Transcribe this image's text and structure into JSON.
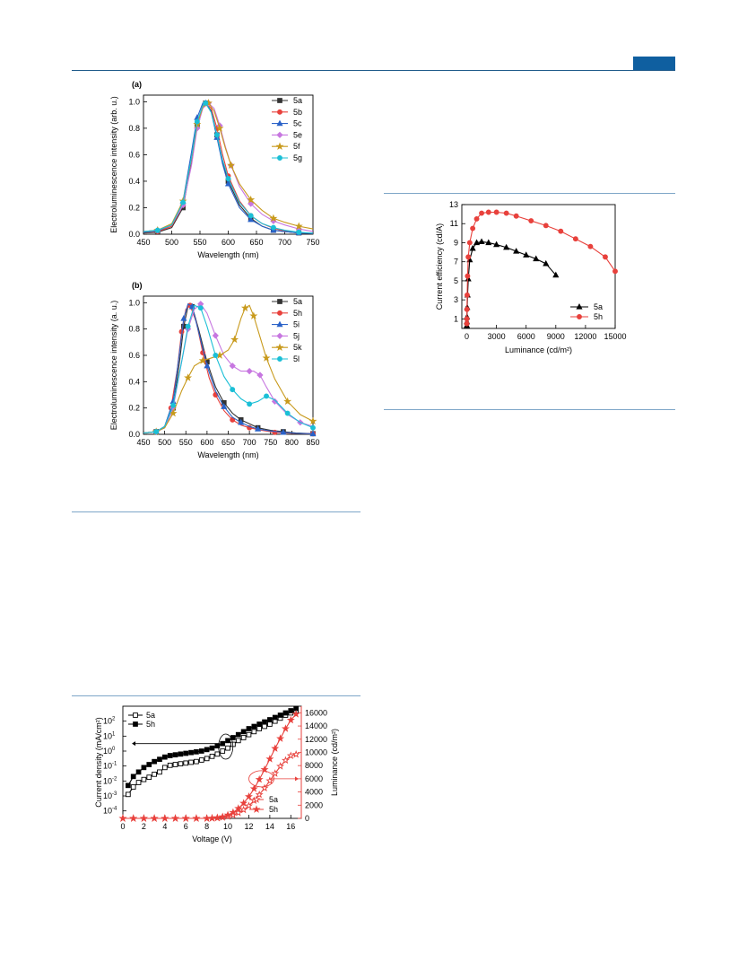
{
  "chart_data": [
    {
      "type": "line",
      "panel_label": "(a)",
      "xlabel": "Wavelength (nm)",
      "ylabel": "Electroluminescence intensity (arb. u.)",
      "xlim": [
        450,
        750
      ],
      "ylim": [
        0,
        1.05
      ],
      "xticks": [
        450,
        500,
        550,
        600,
        650,
        700,
        750
      ],
      "yticks": [
        0.0,
        0.2,
        0.4,
        0.6,
        0.8,
        1.0
      ],
      "legend_position": "top-right",
      "series": [
        {
          "name": "5a",
          "color": "#333333",
          "marker": "square",
          "x": [
            450,
            475,
            500,
            520,
            535,
            545,
            555,
            560,
            570,
            580,
            590,
            600,
            620,
            640,
            660,
            680,
            700,
            725,
            750
          ],
          "y": [
            0.01,
            0.015,
            0.05,
            0.2,
            0.55,
            0.82,
            0.97,
            0.99,
            0.93,
            0.75,
            0.55,
            0.4,
            0.22,
            0.12,
            0.06,
            0.03,
            0.02,
            0.01,
            0.005
          ]
        },
        {
          "name": "5b",
          "color": "#e8413c",
          "marker": "circle",
          "x": [
            450,
            475,
            500,
            520,
            535,
            545,
            555,
            560,
            570,
            580,
            590,
            600,
            620,
            640,
            660,
            680,
            700,
            725,
            750
          ],
          "y": [
            0.015,
            0.02,
            0.06,
            0.22,
            0.57,
            0.84,
            0.97,
            0.99,
            0.95,
            0.8,
            0.6,
            0.44,
            0.25,
            0.14,
            0.08,
            0.045,
            0.025,
            0.012,
            0.006
          ]
        },
        {
          "name": "5c",
          "color": "#2a62c8",
          "marker": "triangle",
          "x": [
            450,
            475,
            500,
            520,
            535,
            545,
            555,
            560,
            570,
            580,
            590,
            600,
            620,
            640,
            660,
            680,
            700,
            725,
            750
          ],
          "y": [
            0.015,
            0.025,
            0.07,
            0.25,
            0.62,
            0.88,
            0.99,
            0.99,
            0.92,
            0.73,
            0.53,
            0.38,
            0.2,
            0.11,
            0.06,
            0.03,
            0.02,
            0.01,
            0.005
          ]
        },
        {
          "name": "5e",
          "color": "#c777e0",
          "marker": "diamond",
          "x": [
            450,
            475,
            500,
            520,
            535,
            545,
            555,
            565,
            575,
            585,
            595,
            605,
            620,
            640,
            660,
            680,
            700,
            725,
            750
          ],
          "y": [
            0.02,
            0.03,
            0.07,
            0.22,
            0.52,
            0.8,
            0.95,
            0.99,
            0.95,
            0.82,
            0.66,
            0.52,
            0.36,
            0.23,
            0.15,
            0.1,
            0.07,
            0.04,
            0.02
          ]
        },
        {
          "name": "5f",
          "color": "#c89a1c",
          "marker": "star",
          "x": [
            450,
            475,
            500,
            520,
            535,
            545,
            555,
            565,
            575,
            585,
            595,
            605,
            620,
            640,
            660,
            680,
            700,
            725,
            750
          ],
          "y": [
            0.02,
            0.03,
            0.08,
            0.25,
            0.57,
            0.83,
            0.96,
            0.99,
            0.93,
            0.8,
            0.65,
            0.52,
            0.38,
            0.26,
            0.18,
            0.12,
            0.09,
            0.06,
            0.04
          ]
        },
        {
          "name": "5g",
          "color": "#1bbfd6",
          "marker": "circle",
          "x": [
            450,
            475,
            500,
            520,
            535,
            545,
            555,
            560,
            570,
            580,
            590,
            600,
            620,
            640,
            660,
            680,
            700,
            725,
            750
          ],
          "y": [
            0.02,
            0.03,
            0.07,
            0.24,
            0.58,
            0.85,
            0.97,
            0.99,
            0.92,
            0.75,
            0.56,
            0.42,
            0.24,
            0.14,
            0.08,
            0.05,
            0.03,
            0.015,
            0.008
          ]
        }
      ]
    },
    {
      "type": "line",
      "panel_label": "(b)",
      "xlabel": "Wavelength (nm)",
      "ylabel": "Electroluminescence intensity (a. u.)",
      "xlim": [
        450,
        850
      ],
      "ylim": [
        0,
        1.05
      ],
      "xticks": [
        450,
        500,
        550,
        600,
        650,
        700,
        750,
        800,
        850
      ],
      "yticks": [
        0.0,
        0.2,
        0.4,
        0.6,
        0.8,
        1.0
      ],
      "legend_position": "top-right",
      "series": [
        {
          "name": "5a",
          "color": "#333333",
          "marker": "square",
          "x": [
            450,
            480,
            500,
            520,
            535,
            545,
            555,
            565,
            580,
            600,
            620,
            640,
            660,
            680,
            700,
            720,
            750,
            780,
            810,
            850
          ],
          "y": [
            0.01,
            0.02,
            0.05,
            0.2,
            0.55,
            0.82,
            0.97,
            0.97,
            0.8,
            0.55,
            0.36,
            0.24,
            0.16,
            0.11,
            0.08,
            0.05,
            0.03,
            0.02,
            0.01,
            0.005
          ]
        },
        {
          "name": "5h",
          "color": "#e8413c",
          "marker": "circle",
          "x": [
            450,
            480,
            500,
            515,
            530,
            540,
            550,
            560,
            575,
            590,
            605,
            620,
            640,
            660,
            680,
            700,
            730,
            760,
            800,
            850
          ],
          "y": [
            0.01,
            0.02,
            0.06,
            0.2,
            0.5,
            0.78,
            0.95,
            0.98,
            0.85,
            0.62,
            0.43,
            0.3,
            0.18,
            0.11,
            0.07,
            0.05,
            0.03,
            0.015,
            0.008,
            0.004
          ]
        },
        {
          "name": "5i",
          "color": "#2a62c8",
          "marker": "triangle",
          "x": [
            450,
            480,
            500,
            520,
            535,
            545,
            555,
            565,
            580,
            600,
            620,
            640,
            660,
            680,
            700,
            720,
            750,
            780,
            810,
            850
          ],
          "y": [
            0.01,
            0.02,
            0.06,
            0.25,
            0.62,
            0.88,
            0.99,
            0.97,
            0.78,
            0.52,
            0.33,
            0.21,
            0.13,
            0.09,
            0.06,
            0.04,
            0.025,
            0.015,
            0.008,
            0.004
          ]
        },
        {
          "name": "5j",
          "color": "#c777e0",
          "marker": "diamond",
          "x": [
            450,
            480,
            500,
            520,
            540,
            555,
            570,
            585,
            600,
            620,
            640,
            660,
            680,
            700,
            710,
            725,
            740,
            760,
            790,
            820,
            850
          ],
          "y": [
            0.01,
            0.02,
            0.05,
            0.2,
            0.55,
            0.8,
            0.95,
            0.99,
            0.92,
            0.75,
            0.6,
            0.52,
            0.48,
            0.48,
            0.48,
            0.45,
            0.36,
            0.25,
            0.15,
            0.09,
            0.06
          ]
        },
        {
          "name": "5k",
          "color": "#c89a1c",
          "marker": "star",
          "x": [
            450,
            480,
            500,
            520,
            540,
            555,
            570,
            590,
            610,
            630,
            650,
            665,
            680,
            690,
            700,
            710,
            725,
            740,
            760,
            790,
            820,
            850
          ],
          "y": [
            0.01,
            0.02,
            0.05,
            0.16,
            0.33,
            0.43,
            0.52,
            0.56,
            0.58,
            0.6,
            0.64,
            0.72,
            0.88,
            0.96,
            0.98,
            0.9,
            0.74,
            0.58,
            0.42,
            0.25,
            0.15,
            0.1
          ]
        },
        {
          "name": "5l",
          "color": "#1bbfd6",
          "marker": "circle",
          "x": [
            450,
            480,
            500,
            520,
            540,
            555,
            570,
            585,
            600,
            620,
            640,
            660,
            680,
            700,
            720,
            740,
            760,
            790,
            820,
            850
          ],
          "y": [
            0.01,
            0.02,
            0.06,
            0.22,
            0.55,
            0.82,
            0.98,
            0.96,
            0.82,
            0.6,
            0.44,
            0.34,
            0.27,
            0.23,
            0.25,
            0.29,
            0.26,
            0.16,
            0.09,
            0.05
          ]
        }
      ]
    },
    {
      "type": "scatter",
      "xlabel": "Luminance (cd/m²)",
      "ylabel": "Current efficiency (cd/A)",
      "xlim": [
        -500,
        15000
      ],
      "ylim": [
        0,
        13
      ],
      "xticks": [
        0,
        3000,
        6000,
        9000,
        12000,
        15000
      ],
      "yticks": [
        1,
        3,
        5,
        7,
        9,
        11,
        13
      ],
      "legend_position": "bottom-right",
      "series": [
        {
          "name": "5a",
          "color": "#000000",
          "marker": "triangle",
          "x": [
            5,
            10,
            20,
            40,
            80,
            150,
            300,
            600,
            1000,
            1500,
            2200,
            3000,
            4000,
            5000,
            6000,
            7000,
            8000,
            9000
          ],
          "y": [
            0.3,
            0.7,
            1.2,
            2.2,
            3.5,
            5.2,
            7.2,
            8.4,
            9.0,
            9.1,
            9.0,
            8.8,
            8.5,
            8.1,
            7.7,
            7.3,
            6.8,
            5.6
          ]
        },
        {
          "name": "5h",
          "color": "#e8413c",
          "marker": "circle",
          "x": [
            5,
            10,
            20,
            40,
            80,
            150,
            300,
            600,
            1000,
            1500,
            2200,
            3000,
            4000,
            5000,
            6500,
            8000,
            9500,
            11000,
            12500,
            14000,
            15000
          ],
          "y": [
            0.5,
            1.0,
            2.0,
            3.5,
            5.5,
            7.5,
            9.0,
            10.5,
            11.5,
            12.1,
            12.2,
            12.2,
            12.1,
            11.8,
            11.3,
            10.8,
            10.2,
            9.4,
            8.6,
            7.5,
            6.0
          ]
        }
      ]
    },
    {
      "type": "scatter",
      "xlabel": "Voltage (V)",
      "ylabel": "Current density (mA/cm²)",
      "y2label": "Luminance (cd/m²)",
      "xlim": [
        0,
        17
      ],
      "ylim_log": [
        -4.5,
        3
      ],
      "y2lim": [
        0,
        17000
      ],
      "xticks": [
        0,
        2,
        4,
        6,
        8,
        10,
        12,
        14,
        16
      ],
      "yticks_exp": [
        -4,
        -3,
        -2,
        -1,
        0,
        1,
        2
      ],
      "y2ticks": [
        0,
        2000,
        4000,
        6000,
        8000,
        10000,
        12000,
        14000,
        16000
      ],
      "legend_position": "top-left",
      "legend2_position": "bottom-right",
      "current_series": [
        {
          "name": "5a",
          "color": "#000000",
          "filled": false,
          "x": [
            0.5,
            1,
            1.5,
            2,
            2.5,
            3,
            3.5,
            4,
            4.5,
            5,
            5.5,
            6,
            6.5,
            7,
            7.5,
            8,
            8.5,
            9,
            9.5,
            10,
            10.5,
            11,
            11.5,
            12,
            12.5,
            13,
            13.5,
            14,
            14.5,
            15,
            15.5,
            16,
            16.5
          ],
          "log_y": [
            -2.9,
            -2.4,
            -2.1,
            -1.9,
            -1.75,
            -1.55,
            -1.4,
            -1.1,
            -0.95,
            -0.9,
            -0.85,
            -0.8,
            -0.75,
            -0.7,
            -0.6,
            -0.5,
            -0.35,
            -0.2,
            0.0,
            0.2,
            0.45,
            0.7,
            0.9,
            1.1,
            1.3,
            1.5,
            1.65,
            1.8,
            2.0,
            2.2,
            2.4,
            2.55,
            2.7
          ]
        },
        {
          "name": "5h",
          "color": "#000000",
          "filled": true,
          "x": [
            0.5,
            1,
            1.5,
            2,
            2.5,
            3,
            3.5,
            4,
            4.5,
            5,
            5.5,
            6,
            6.5,
            7,
            7.5,
            8,
            8.5,
            9,
            9.5,
            10,
            10.5,
            11,
            11.5,
            12,
            12.5,
            13,
            13.5,
            14,
            14.5,
            15,
            15.5,
            16,
            16.5
          ],
          "log_y": [
            -2.3,
            -1.7,
            -1.4,
            -1.1,
            -0.9,
            -0.7,
            -0.55,
            -0.4,
            -0.3,
            -0.25,
            -0.2,
            -0.15,
            -0.1,
            -0.05,
            0.0,
            0.1,
            0.2,
            0.35,
            0.5,
            0.7,
            0.9,
            1.1,
            1.3,
            1.5,
            1.65,
            1.8,
            1.95,
            2.1,
            2.25,
            2.4,
            2.55,
            2.7,
            2.85
          ]
        }
      ],
      "luminance_series": [
        {
          "name": "5a",
          "color": "#e8413c",
          "filled": false,
          "x": [
            0,
            1,
            2,
            3,
            4,
            5,
            6,
            7,
            8,
            8.5,
            9,
            9.5,
            10,
            10.5,
            11,
            11.5,
            12,
            12.5,
            13,
            13.5,
            14,
            14.5,
            15,
            15.5,
            16,
            16.5
          ],
          "y": [
            0,
            0,
            0,
            0,
            0,
            0,
            0,
            0,
            0,
            20,
            60,
            150,
            300,
            520,
            850,
            1300,
            1900,
            2700,
            3600,
            4600,
            5700,
            6800,
            7900,
            8800,
            9500,
            9700
          ]
        },
        {
          "name": "5h",
          "color": "#e8413c",
          "filled": true,
          "x": [
            0,
            1,
            2,
            3,
            4,
            5,
            6,
            7,
            8,
            8.5,
            9,
            9.5,
            10,
            10.5,
            11,
            11.5,
            12,
            12.5,
            13,
            13.5,
            14,
            14.5,
            15,
            15.5,
            16,
            16.5
          ],
          "y": [
            0,
            0,
            0,
            0,
            0,
            0,
            0,
            0,
            0,
            30,
            100,
            250,
            520,
            900,
            1500,
            2300,
            3300,
            4500,
            5900,
            7400,
            9000,
            10600,
            12100,
            13600,
            14900,
            15800
          ]
        }
      ]
    }
  ]
}
